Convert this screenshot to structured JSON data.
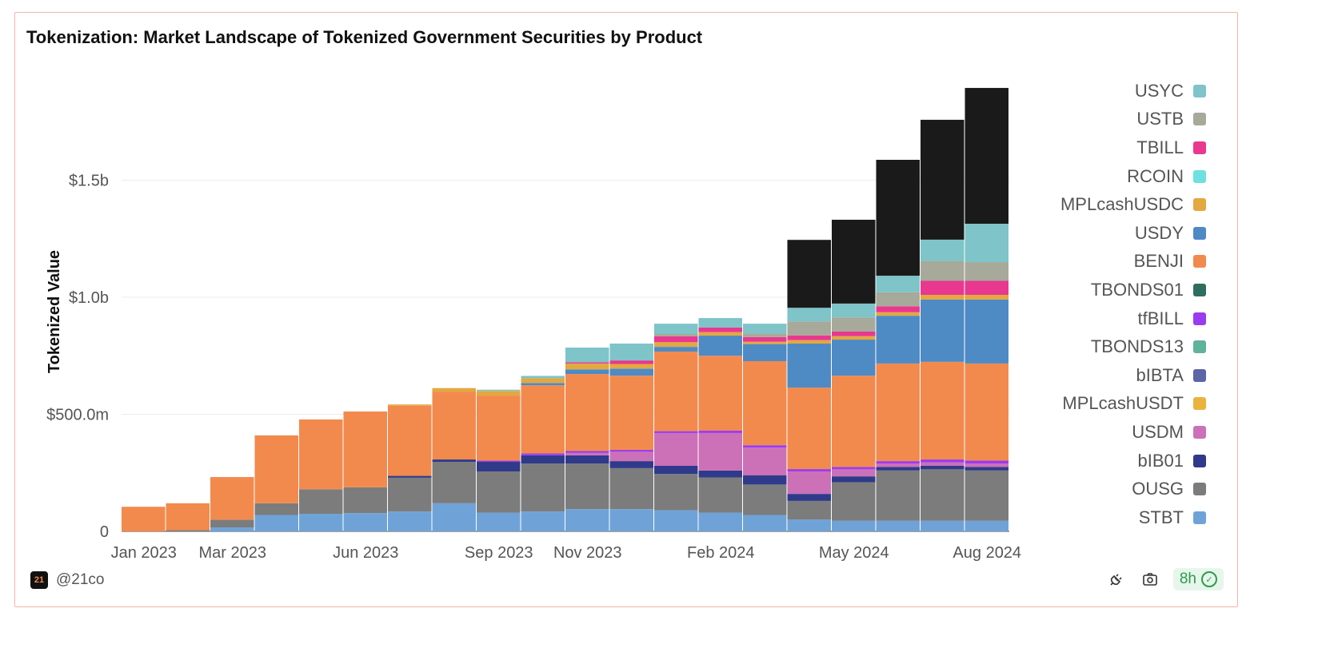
{
  "chart_data": {
    "type": "bar",
    "stacked": true,
    "title": "Tokenization: Market Landscape of Tokenized Government Securities by Product",
    "xlabel": "",
    "ylabel": "Tokenized Value",
    "unit": "USD millions",
    "ylim": [
      0,
      2000
    ],
    "yticks": [
      {
        "value": 0,
        "label": "0"
      },
      {
        "value": 500,
        "label": "$500.0m"
      },
      {
        "value": 1000,
        "label": "$1.0b"
      },
      {
        "value": 1500,
        "label": "$1.5b"
      }
    ],
    "xticks": [
      {
        "index": 0,
        "label": "Jan 2023"
      },
      {
        "index": 2,
        "label": "Mar 2023"
      },
      {
        "index": 5,
        "label": "Jun 2023"
      },
      {
        "index": 8,
        "label": "Sep 2023"
      },
      {
        "index": 10,
        "label": "Nov 2023"
      },
      {
        "index": 13,
        "label": "Feb 2024"
      },
      {
        "index": 16,
        "label": "May 2024"
      },
      {
        "index": 19,
        "label": "Aug 2024"
      }
    ],
    "grid": true,
    "legend_placement": "right",
    "x": [
      "2023-01",
      "2023-02",
      "2023-03",
      "2023-04",
      "2023-05",
      "2023-06",
      "2023-07",
      "2023-08",
      "2023-09",
      "2023-10",
      "2023-11",
      "2023-12",
      "2024-01",
      "2024-02",
      "2024-03",
      "2024-04",
      "2024-05",
      "2024-06",
      "2024-07",
      "2024-08"
    ],
    "series": [
      {
        "name": "STBT",
        "color": "#6fa3d8",
        "values": [
          0,
          0,
          17,
          70,
          75,
          78,
          85,
          120,
          80,
          85,
          95,
          95,
          90,
          80,
          70,
          50,
          45,
          45,
          45,
          45
        ]
      },
      {
        "name": "OUSG",
        "color": "#7c7c7c",
        "values": [
          0,
          5,
          33,
          50,
          105,
          110,
          144,
          177,
          176,
          205,
          195,
          175,
          155,
          150,
          130,
          80,
          165,
          215,
          220,
          215
        ]
      },
      {
        "name": "bIB01",
        "color": "#303a8a",
        "values": [
          0,
          0,
          0,
          0,
          0,
          0,
          8,
          10,
          41,
          35,
          35,
          30,
          35,
          30,
          40,
          30,
          25,
          15,
          15,
          15
        ]
      },
      {
        "name": "USDM",
        "color": "#cc70b8",
        "values": [
          0,
          0,
          0,
          0,
          0,
          0,
          0,
          0,
          0,
          0,
          10,
          40,
          140,
          160,
          118,
          96,
          30,
          15,
          15,
          15
        ]
      },
      {
        "name": "MPLcashUSDT",
        "color": "#ebb33e",
        "values": [
          0,
          0,
          0,
          0,
          0,
          0,
          0,
          0,
          0,
          0,
          0,
          0,
          0,
          0,
          0,
          0,
          0,
          0,
          0,
          0
        ]
      },
      {
        "name": "bIBTA",
        "color": "#5b65a8",
        "values": [
          0,
          0,
          0,
          0,
          0,
          0,
          0,
          0,
          0,
          0,
          0,
          0,
          0,
          0,
          0,
          0,
          0,
          0,
          0,
          0
        ]
      },
      {
        "name": "TBONDS13",
        "color": "#5fb39a",
        "values": [
          0,
          0,
          0,
          0,
          0,
          0,
          0,
          0,
          0,
          0,
          0,
          0,
          0,
          0,
          0,
          0,
          0,
          0,
          0,
          0
        ]
      },
      {
        "name": "tfBILL",
        "color": "#9b3bf0",
        "values": [
          0,
          0,
          0,
          0,
          0,
          0,
          0,
          0,
          5,
          8,
          8,
          8,
          8,
          10,
          10,
          10,
          10,
          10,
          12,
          12
        ]
      },
      {
        "name": "TBONDS01",
        "color": "#2f6e5e",
        "values": [
          0,
          0,
          0,
          0,
          0,
          0,
          0,
          0,
          0,
          0,
          0,
          0,
          0,
          0,
          0,
          0,
          0,
          0,
          0,
          0
        ]
      },
      {
        "name": "BENJI",
        "color": "#f28a4e",
        "values": [
          105,
          115,
          182,
          290,
          298,
          324,
          300,
          290,
          278,
          291,
          329,
          317,
          340,
          320,
          359,
          348,
          390,
          417,
          417,
          415
        ]
      },
      {
        "name": "USDY",
        "color": "#4e8ac4",
        "values": [
          0,
          0,
          0,
          0,
          0,
          0,
          0,
          0,
          0,
          10,
          20,
          30,
          20,
          86,
          73,
          188,
          154,
          204,
          266,
          273
        ]
      },
      {
        "name": "MPLcashUSDC",
        "color": "#e3a840",
        "values": [
          0,
          0,
          0,
          0,
          0,
          0,
          5,
          15,
          20,
          20,
          25,
          20,
          20,
          15,
          10,
          15,
          15,
          15,
          20,
          20
        ]
      },
      {
        "name": "RCOIN",
        "color": "#6ee0e0",
        "values": [
          0,
          0,
          0,
          0,
          0,
          0,
          0,
          0,
          0,
          0,
          0,
          0,
          0,
          0,
          0,
          0,
          0,
          0,
          0,
          0
        ]
      },
      {
        "name": "TBILL",
        "color": "#e8388f",
        "values": [
          0,
          0,
          0,
          0,
          0,
          0,
          0,
          0,
          0,
          0,
          5,
          15,
          25,
          20,
          20,
          20,
          20,
          25,
          60,
          60
        ]
      },
      {
        "name": "USTB",
        "color": "#a7a99a",
        "values": [
          0,
          0,
          0,
          0,
          0,
          0,
          0,
          0,
          0,
          0,
          0,
          0,
          10,
          0,
          15,
          60,
          60,
          60,
          85,
          80
        ]
      },
      {
        "name": "USYC",
        "color": "#7ec4c9",
        "values": [
          0,
          0,
          0,
          0,
          0,
          0,
          0,
          0,
          5,
          10,
          63,
          72,
          44,
          40,
          42,
          58,
          59,
          71,
          91,
          164
        ]
      },
      {
        "color": "#1a1a1a",
        "values": [
          0,
          0,
          0,
          0,
          0,
          0,
          0,
          0,
          0,
          0,
          0,
          0,
          0,
          0,
          0,
          290,
          358,
          495,
          512,
          580
        ]
      }
    ]
  },
  "legend_order": [
    "USYC",
    "USTB",
    "TBILL",
    "RCOIN",
    "MPLcashUSDC",
    "USDY",
    "BENJI",
    "TBONDS01",
    "tfBILL",
    "TBONDS13",
    "bIBTA",
    "MPLcashUSDT",
    "USDM",
    "bIB01",
    "OUSG",
    "STBT"
  ],
  "footer": {
    "handle": "@21co",
    "logo_text": "21",
    "freshness": "8h",
    "icons": [
      "plug-icon",
      "camera-icon",
      "check-circle-icon"
    ]
  }
}
